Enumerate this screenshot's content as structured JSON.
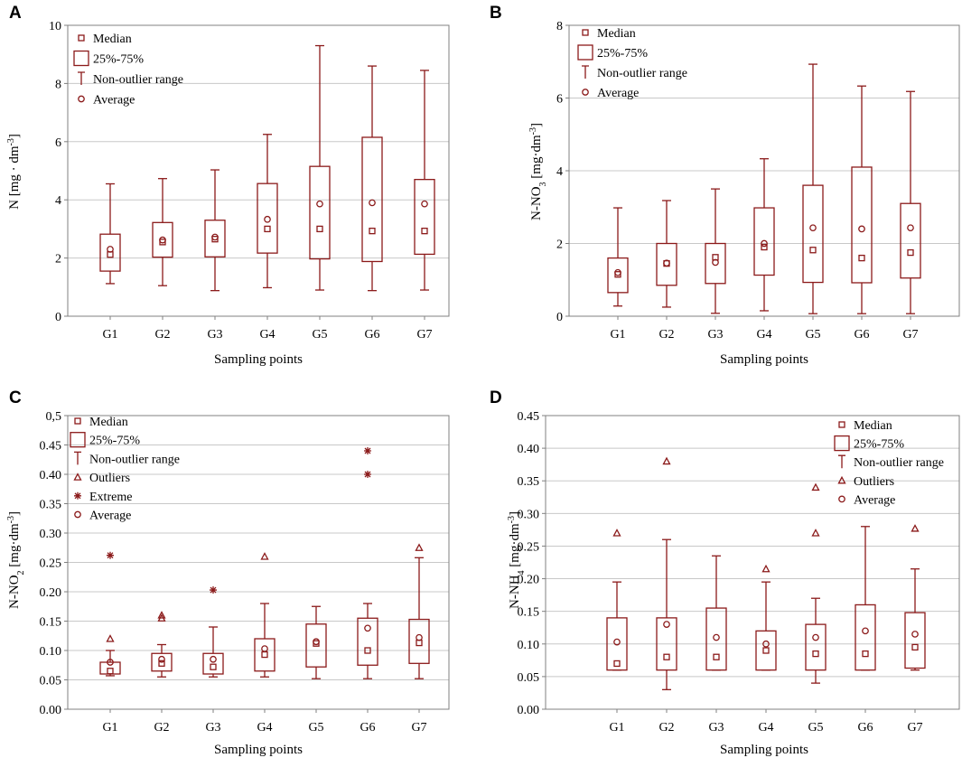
{
  "colors": {
    "mark": "#8b1a1a",
    "axis": "#808080",
    "grid": "#c8c8c8"
  },
  "chart_data": [
    {
      "id": "A",
      "panel_label": "A",
      "type": "box",
      "title": "",
      "xlabel": "Sampling points",
      "ylabel": {
        "main": "N [mg · dm",
        "sup": "-3",
        "tail": "]"
      },
      "ylim": [
        0,
        10
      ],
      "yticks": [
        0,
        2,
        4,
        6,
        8,
        10
      ],
      "ytick_labels": [
        "0",
        "2",
        "4",
        "6",
        "8",
        "10"
      ],
      "categories": [
        "G1",
        "G2",
        "G3",
        "G4",
        "G5",
        "G6",
        "G7"
      ],
      "legend": {
        "position": "top-left",
        "entries": [
          "Median",
          "25%-75%",
          "Non-outlier range",
          "Average"
        ]
      },
      "series": [
        {
          "name": "G1",
          "whisker_low": 1.12,
          "q1": 1.55,
          "median": 2.12,
          "q3": 2.82,
          "whisker_high": 4.55,
          "mean": 2.3,
          "outliers": [],
          "extremes": []
        },
        {
          "name": "G2",
          "whisker_low": 1.05,
          "q1": 2.03,
          "median": 2.55,
          "q3": 3.22,
          "whisker_high": 4.73,
          "mean": 2.62,
          "outliers": [],
          "extremes": []
        },
        {
          "name": "G3",
          "whisker_low": 0.88,
          "q1": 2.04,
          "median": 2.65,
          "q3": 3.3,
          "whisker_high": 5.03,
          "mean": 2.72,
          "outliers": [],
          "extremes": []
        },
        {
          "name": "G4",
          "whisker_low": 0.98,
          "q1": 2.17,
          "median": 3.0,
          "q3": 4.56,
          "whisker_high": 6.25,
          "mean": 3.33,
          "outliers": [],
          "extremes": []
        },
        {
          "name": "G5",
          "whisker_low": 0.9,
          "q1": 1.97,
          "median": 3.0,
          "q3": 5.15,
          "whisker_high": 9.3,
          "mean": 3.86,
          "outliers": [],
          "extremes": []
        },
        {
          "name": "G6",
          "whisker_low": 0.88,
          "q1": 1.88,
          "median": 2.93,
          "q3": 6.15,
          "whisker_high": 8.6,
          "mean": 3.9,
          "outliers": [],
          "extremes": []
        },
        {
          "name": "G7",
          "whisker_low": 0.9,
          "q1": 2.13,
          "median": 2.93,
          "q3": 4.7,
          "whisker_high": 8.45,
          "mean": 3.86,
          "outliers": [],
          "extremes": []
        }
      ]
    },
    {
      "id": "B",
      "panel_label": "B",
      "type": "box",
      "title": "",
      "xlabel": "Sampling points",
      "ylabel": {
        "main": "N-NO",
        "sub": "3",
        "mid": " [mg·dm",
        "sup": "-3",
        "tail": "]"
      },
      "ylim": [
        0,
        8
      ],
      "yticks": [
        0,
        2,
        4,
        6,
        8
      ],
      "ytick_labels": [
        "0",
        "2",
        "4",
        "6",
        "8"
      ],
      "categories": [
        "G1",
        "G2",
        "G3",
        "G4",
        "G5",
        "G6",
        "G7"
      ],
      "legend": {
        "position": "top-left",
        "entries": [
          "Median",
          "25%-75%",
          "Non-outlier range",
          "Average"
        ]
      },
      "series": [
        {
          "name": "G1",
          "whisker_low": 0.28,
          "q1": 0.65,
          "median": 1.15,
          "q3": 1.6,
          "whisker_high": 2.98,
          "mean": 1.2,
          "outliers": [],
          "extremes": []
        },
        {
          "name": "G2",
          "whisker_low": 0.25,
          "q1": 0.85,
          "median": 1.45,
          "q3": 2.0,
          "whisker_high": 3.18,
          "mean": 1.46,
          "outliers": [],
          "extremes": []
        },
        {
          "name": "G3",
          "whisker_low": 0.08,
          "q1": 0.9,
          "median": 1.62,
          "q3": 2.0,
          "whisker_high": 3.5,
          "mean": 1.48,
          "outliers": [],
          "extremes": []
        },
        {
          "name": "G4",
          "whisker_low": 0.15,
          "q1": 1.13,
          "median": 1.9,
          "q3": 2.98,
          "whisker_high": 4.33,
          "mean": 2.0,
          "outliers": [],
          "extremes": []
        },
        {
          "name": "G5",
          "whisker_low": 0.07,
          "q1": 0.93,
          "median": 1.82,
          "q3": 3.6,
          "whisker_high": 6.93,
          "mean": 2.43,
          "outliers": [],
          "extremes": []
        },
        {
          "name": "G6",
          "whisker_low": 0.07,
          "q1": 0.92,
          "median": 1.6,
          "q3": 4.1,
          "whisker_high": 6.33,
          "mean": 2.4,
          "outliers": [],
          "extremes": []
        },
        {
          "name": "G7",
          "whisker_low": 0.07,
          "q1": 1.05,
          "median": 1.75,
          "q3": 3.1,
          "whisker_high": 6.18,
          "mean": 2.43,
          "outliers": [],
          "extremes": []
        }
      ]
    },
    {
      "id": "C",
      "panel_label": "C",
      "type": "box",
      "title": "",
      "xlabel": "Sampling points",
      "ylabel": {
        "main": "N-NO",
        "sub": "2",
        "mid": " [mg·dm",
        "sup": "-3",
        "tail": "]"
      },
      "ylim": [
        0,
        0.5
      ],
      "yticks": [
        0,
        0.05,
        0.1,
        0.15,
        0.2,
        0.25,
        0.3,
        0.35,
        0.4,
        0.45,
        0.5
      ],
      "ytick_labels": [
        "0.00",
        "0.05",
        "0.10",
        "0.15",
        "0.20",
        "0.25",
        "0.30",
        "0.35",
        "0.40",
        "0.45",
        "0,5"
      ],
      "categories": [
        "G1",
        "G2",
        "G3",
        "G4",
        "G5",
        "G6",
        "G7"
      ],
      "legend": {
        "position": "top-left",
        "entries": [
          "Median",
          "25%-75%",
          "Non-outlier range",
          "Outliers",
          "Extreme",
          "Average"
        ]
      },
      "series": [
        {
          "name": "G1",
          "whisker_low": 0.057,
          "q1": 0.06,
          "median": 0.065,
          "q3": 0.08,
          "whisker_high": 0.1,
          "mean": 0.08,
          "outliers": [
            0.12
          ],
          "extremes": [
            0.262
          ]
        },
        {
          "name": "G2",
          "whisker_low": 0.055,
          "q1": 0.065,
          "median": 0.078,
          "q3": 0.095,
          "whisker_high": 0.11,
          "mean": 0.085,
          "outliers": [
            0.155,
            0.16
          ],
          "extremes": []
        },
        {
          "name": "G3",
          "whisker_low": 0.055,
          "q1": 0.06,
          "median": 0.072,
          "q3": 0.095,
          "whisker_high": 0.14,
          "mean": 0.085,
          "outliers": [],
          "extremes": [
            0.203
          ]
        },
        {
          "name": "G4",
          "whisker_low": 0.055,
          "q1": 0.065,
          "median": 0.093,
          "q3": 0.12,
          "whisker_high": 0.18,
          "mean": 0.103,
          "outliers": [
            0.26
          ],
          "extremes": []
        },
        {
          "name": "G5",
          "whisker_low": 0.052,
          "q1": 0.072,
          "median": 0.112,
          "q3": 0.145,
          "whisker_high": 0.175,
          "mean": 0.115,
          "outliers": [],
          "extremes": []
        },
        {
          "name": "G6",
          "whisker_low": 0.052,
          "q1": 0.075,
          "median": 0.1,
          "q3": 0.155,
          "whisker_high": 0.18,
          "mean": 0.138,
          "outliers": [],
          "extremes": [
            0.4,
            0.44
          ]
        },
        {
          "name": "G7",
          "whisker_low": 0.052,
          "q1": 0.078,
          "median": 0.113,
          "q3": 0.153,
          "whisker_high": 0.258,
          "mean": 0.122,
          "outliers": [
            0.275
          ],
          "extremes": []
        }
      ]
    },
    {
      "id": "D",
      "panel_label": "D",
      "type": "box",
      "title": "",
      "xlabel": "Sampling points",
      "ylabel": {
        "main": "N-NH",
        "sub": "4",
        "mid": " [mg·dm",
        "sup": "-3",
        "tail": "]"
      },
      "ylim": [
        0,
        0.45
      ],
      "yticks": [
        0,
        0.05,
        0.1,
        0.15,
        0.2,
        0.25,
        0.3,
        0.35,
        0.4,
        0.45
      ],
      "ytick_labels": [
        "0.00",
        "0.05",
        "0.10",
        "0.15",
        "0.20",
        "0.25",
        "0.30",
        "0.35",
        "0.40",
        "0.45"
      ],
      "categories": [
        "G1",
        "G2",
        "G3",
        "G4",
        "G5",
        "G6",
        "G7"
      ],
      "legend": {
        "position": "top-right",
        "entries": [
          "Median",
          "25%-75%",
          "Non-outlier range",
          "Outliers",
          "Average"
        ]
      },
      "series": [
        {
          "name": "G1",
          "whisker_low": 0.06,
          "q1": 0.06,
          "median": 0.07,
          "q3": 0.14,
          "whisker_high": 0.195,
          "mean": 0.103,
          "outliers": [
            0.27
          ],
          "extremes": []
        },
        {
          "name": "G2",
          "whisker_low": 0.03,
          "q1": 0.06,
          "median": 0.08,
          "q3": 0.14,
          "whisker_high": 0.26,
          "mean": 0.13,
          "outliers": [
            0.38
          ],
          "extremes": []
        },
        {
          "name": "G3",
          "whisker_low": 0.06,
          "q1": 0.06,
          "median": 0.08,
          "q3": 0.155,
          "whisker_high": 0.235,
          "mean": 0.11,
          "outliers": [],
          "extremes": []
        },
        {
          "name": "G4",
          "whisker_low": 0.06,
          "q1": 0.06,
          "median": 0.09,
          "q3": 0.12,
          "whisker_high": 0.195,
          "mean": 0.1,
          "outliers": [
            0.215
          ],
          "extremes": []
        },
        {
          "name": "G5",
          "whisker_low": 0.04,
          "q1": 0.06,
          "median": 0.085,
          "q3": 0.13,
          "whisker_high": 0.17,
          "mean": 0.11,
          "outliers": [
            0.27,
            0.34
          ],
          "extremes": []
        },
        {
          "name": "G6",
          "whisker_low": 0.06,
          "q1": 0.06,
          "median": 0.085,
          "q3": 0.16,
          "whisker_high": 0.28,
          "mean": 0.12,
          "outliers": [],
          "extremes": []
        },
        {
          "name": "G7",
          "whisker_low": 0.06,
          "q1": 0.063,
          "median": 0.095,
          "q3": 0.148,
          "whisker_high": 0.215,
          "mean": 0.115,
          "outliers": [
            0.277
          ],
          "extremes": []
        }
      ]
    }
  ]
}
